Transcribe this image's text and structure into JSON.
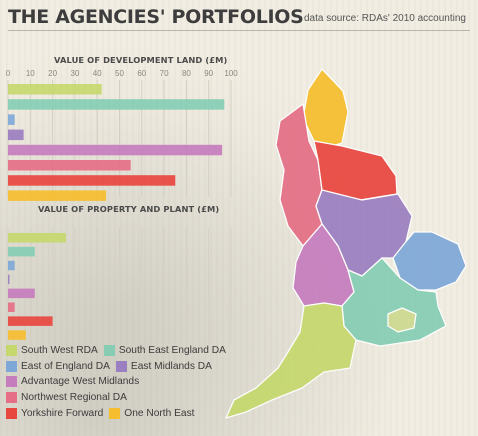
{
  "title": "THE AGENCIES' PORTFOLIOS",
  "source": "data source: RDAs' 2010 accounting",
  "colors": {
    "South West RDA": "#c5d86d",
    "South East England DA": "#86cdb4",
    "East of England DA": "#7fa8d8",
    "East Midlands DA": "#9b7fc0",
    "Advantage West Midlands": "#c57dbe",
    "Northwest Regional DA": "#e56f86",
    "Yorkshire Forward": "#e8473f",
    "One North East": "#f6bd2e"
  },
  "legend": [
    [
      "South West RDA",
      "South East England DA"
    ],
    [
      "East of England DA",
      "East Midlands DA"
    ],
    [
      "Advantage West Midlands"
    ],
    [
      "Northwest Regional DA"
    ],
    [
      "Yorkshire Forward",
      "One North East"
    ]
  ],
  "chart_data": [
    {
      "type": "bar",
      "orientation": "horizontal",
      "title": "VALUE OF DEVELOPMENT LAND (£M)",
      "xlim": [
        0,
        100
      ],
      "ticks": [
        "0",
        "10",
        "20",
        "30",
        "40",
        "50",
        "60",
        "70",
        "80",
        "90",
        "100"
      ],
      "categories": [
        "South West RDA",
        "South East England DA",
        "East of England DA",
        "East Midlands DA",
        "Advantage West Midlands",
        "Northwest Regional DA",
        "Yorkshire Forward",
        "One North East"
      ],
      "values": [
        42,
        97,
        3,
        7,
        96,
        55,
        75,
        44
      ]
    },
    {
      "type": "bar",
      "orientation": "horizontal",
      "title": "VALUE OF PROPERTY AND PLANT (£M)",
      "xlim": [
        0,
        100
      ],
      "categories": [
        "South West RDA",
        "South East England DA",
        "East of England DA",
        "East Midlands DA",
        "Advantage West Midlands",
        "Northwest Regional DA",
        "Yorkshire Forward",
        "One North East"
      ],
      "values": [
        26,
        12,
        3,
        0.5,
        12,
        3,
        20,
        8
      ]
    }
  ]
}
